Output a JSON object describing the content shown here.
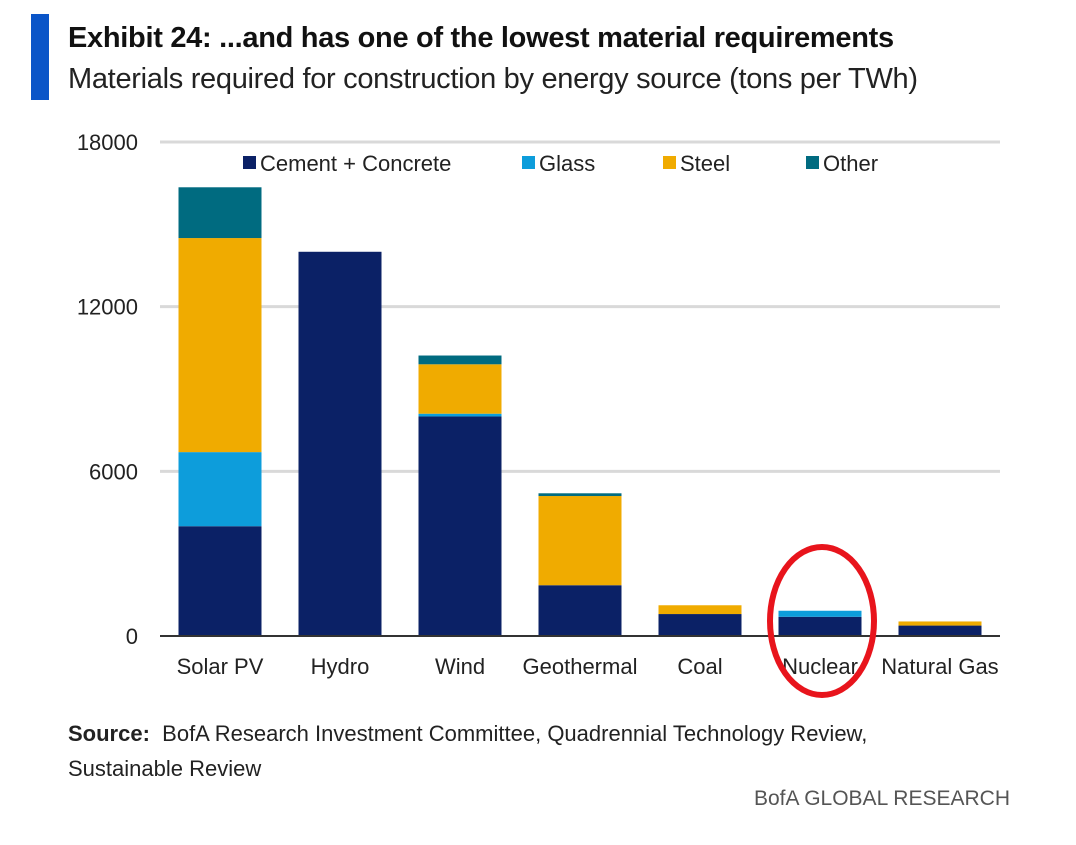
{
  "header": {
    "title": "Exhibit 24: ...and has one of the lowest material requirements",
    "subtitle": "Materials required for construction by energy source (tons per TWh)"
  },
  "footer": {
    "source_label": "Source:",
    "source_text": "BofA Research Investment Committee, Quadrennial Technology Review, Sustainable Review",
    "brand": "BofA GLOBAL RESEARCH"
  },
  "colors": {
    "accent": "#0a55c8",
    "highlight_circle": "#e8141c"
  },
  "chart_data": {
    "type": "bar",
    "stacked": true,
    "title": "",
    "xlabel": "",
    "ylabel": "",
    "ylim": [
      0,
      18000
    ],
    "yticks": [
      0,
      6000,
      12000,
      18000
    ],
    "grid": true,
    "legend_position": "top",
    "highlighted_category": "Nuclear",
    "categories": [
      "Solar PV",
      "Hydro",
      "Wind",
      "Geothermal",
      "Coal",
      "Nuclear",
      "Natural Gas"
    ],
    "series": [
      {
        "name": "Cement + Concrete",
        "color": "#0b2166",
        "values": [
          4000,
          14000,
          8000,
          1850,
          800,
          700,
          380
        ]
      },
      {
        "name": "Glass",
        "color": "#0d9ddb",
        "values": [
          2700,
          0,
          100,
          0,
          0,
          220,
          0
        ]
      },
      {
        "name": "Steel",
        "color": "#f0ab00",
        "values": [
          7800,
          0,
          1800,
          3250,
          320,
          0,
          150
        ]
      },
      {
        "name": "Other",
        "color": "#006b80",
        "values": [
          1850,
          0,
          320,
          100,
          0,
          0,
          0
        ]
      }
    ]
  }
}
